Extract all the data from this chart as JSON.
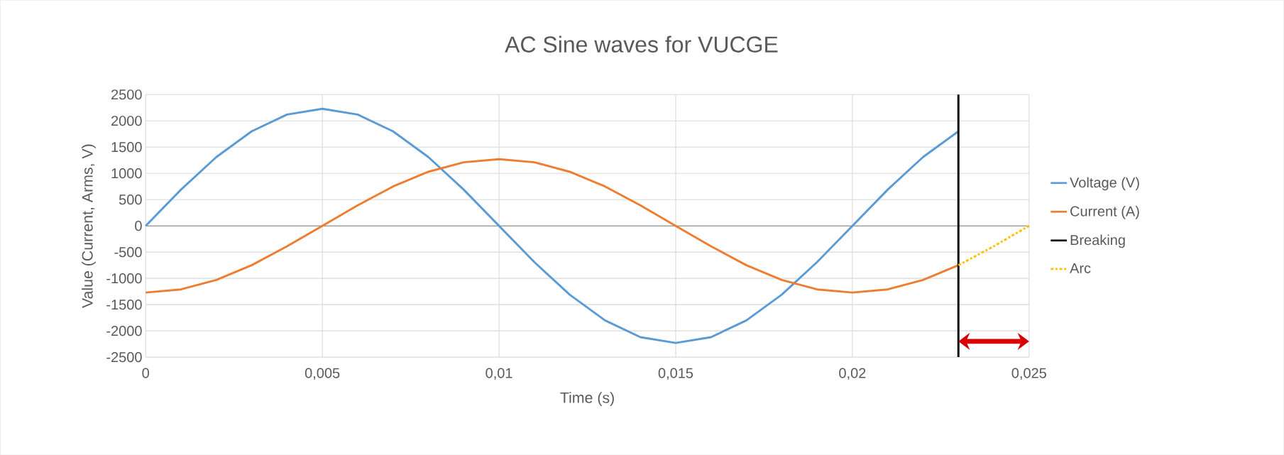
{
  "chart_data": {
    "type": "line",
    "title": "AC Sine waves for VUCGE",
    "xlabel": "Time (s)",
    "ylabel": "Value (Current, Arms, V)",
    "x": [
      0,
      0.001,
      0.002,
      0.003,
      0.004,
      0.005,
      0.006,
      0.007,
      0.008,
      0.009,
      0.01,
      0.011,
      0.012,
      0.013,
      0.014,
      0.015,
      0.016,
      0.017,
      0.018,
      0.019,
      0.02,
      0.021,
      0.022,
      0.023
    ],
    "series": [
      {
        "name": "Voltage (V)",
        "color": "#5b9bd5",
        "values": [
          0,
          690,
          1310,
          1800,
          2120,
          2230,
          2120,
          1800,
          1310,
          690,
          0,
          -690,
          -1310,
          -1800,
          -2120,
          -2230,
          -2120,
          -1800,
          -1310,
          -690,
          0,
          690,
          1310,
          1800
        ]
      },
      {
        "name": "Current (A)",
        "color": "#ed7d31",
        "values": [
          -1270,
          -1210,
          -1030,
          -750,
          -390,
          0,
          390,
          750,
          1030,
          1210,
          1270,
          1210,
          1030,
          750,
          390,
          0,
          -390,
          -750,
          -1030,
          -1210,
          -1270,
          -1210,
          -1030,
          -750
        ]
      },
      {
        "name": "Breaking",
        "color": "#000000",
        "x": [
          0.023,
          0.023
        ],
        "values": [
          -2500,
          2500
        ]
      },
      {
        "name": "Arc",
        "color": "#ffc000",
        "line_style": "dashdot",
        "x": [
          0.023,
          0.024,
          0.025
        ],
        "values": [
          -750,
          -390,
          0
        ]
      }
    ],
    "xlim": [
      0,
      0.025
    ],
    "ylim": [
      -2500,
      2500
    ],
    "xticks": [
      0,
      {
        "value": 0.005,
        "label": "0,005"
      },
      {
        "value": 0.01,
        "label": "0,01"
      },
      {
        "value": 0.015,
        "label": "0,015"
      },
      {
        "value": 0.02,
        "label": "0,02"
      },
      {
        "value": 0.025,
        "label": "0,025"
      }
    ],
    "yticks": [
      -2500,
      -2000,
      -1500,
      -1000,
      -500,
      0,
      500,
      1000,
      1500,
      2000,
      2500
    ],
    "grid": true,
    "legend": "right"
  }
}
